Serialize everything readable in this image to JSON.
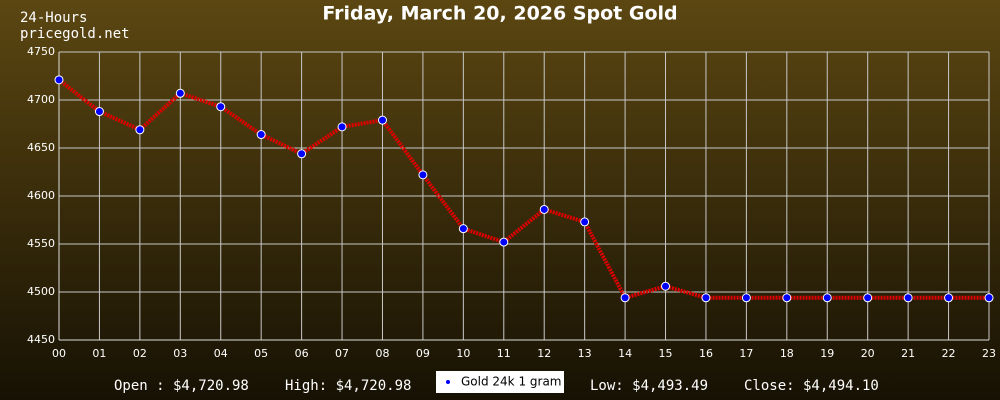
{
  "chart_data": {
    "type": "line",
    "title": "Friday, March 20, 2026 Spot Gold",
    "period": "24-Hours",
    "source": "pricegold.net",
    "categories": [
      "00",
      "01",
      "02",
      "03",
      "04",
      "05",
      "06",
      "07",
      "08",
      "09",
      "10",
      "11",
      "12",
      "13",
      "14",
      "15",
      "16",
      "17",
      "18",
      "19",
      "20",
      "21",
      "22",
      "23"
    ],
    "series": [
      {
        "name": "Gold 24k 1 gram",
        "color": "#e00000",
        "marker_color": "#0000ff",
        "values": [
          4721,
          4688,
          4669,
          4707,
          4693,
          4664,
          4644,
          4672,
          4679,
          4622,
          4566,
          4552,
          4586,
          4573,
          4494,
          4506,
          4494,
          4494,
          4494,
          4494,
          4494,
          4494,
          4494,
          4494
        ]
      }
    ],
    "ylim": [
      4450,
      4750
    ],
    "yticks": [
      4450,
      4500,
      4550,
      4600,
      4650,
      4700,
      4750
    ],
    "grid": true,
    "stats": [
      "Open : $4,720.98",
      "High: $4,720.98",
      "Low: $4,493.49",
      "Close: $4,494.10"
    ]
  }
}
